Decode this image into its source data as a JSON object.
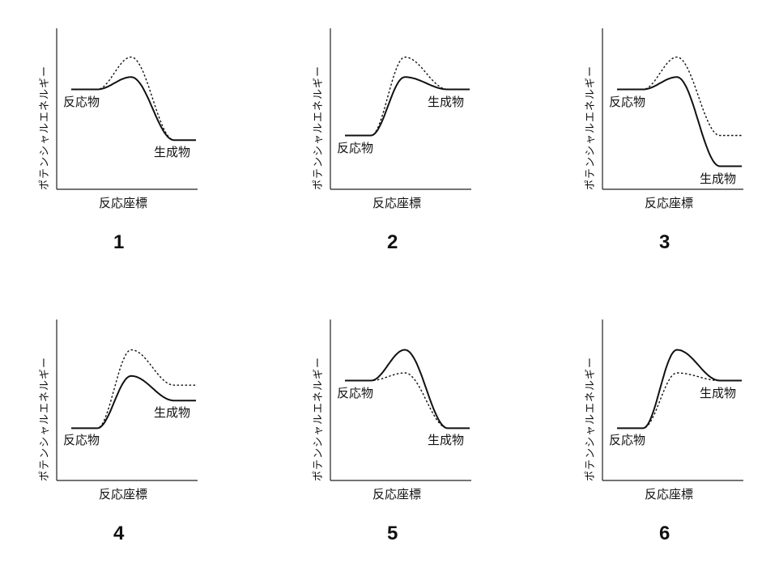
{
  "y_axis_label": "ポテンシャルエネルギー",
  "x_axis_label": "反応座標",
  "reactant_label": "反応物",
  "product_label": "生成物",
  "line_styles": {
    "solid": "solid",
    "dotted": "dotted"
  },
  "diagrams": [
    {
      "number": "1",
      "reactant_energy": 0.65,
      "product_energy": 0.32,
      "solid_peak": 0.73,
      "dotted_peak": 0.86,
      "dotted_product_energy": 0.32
    },
    {
      "number": "2",
      "reactant_energy": 0.35,
      "product_energy": 0.65,
      "solid_peak": 0.73,
      "dotted_peak": 0.86,
      "dotted_product_energy": 0.65
    },
    {
      "number": "3",
      "reactant_energy": 0.65,
      "product_energy": 0.15,
      "solid_peak": 0.73,
      "dotted_peak": 0.86,
      "dotted_product_energy": 0.35
    },
    {
      "number": "4",
      "reactant_energy": 0.34,
      "product_energy": 0.52,
      "solid_peak": 0.68,
      "dotted_peak": 0.85,
      "dotted_product_energy": 0.62
    },
    {
      "number": "5",
      "reactant_energy": 0.65,
      "product_energy": 0.34,
      "solid_peak": 0.85,
      "dotted_peak": 0.7,
      "dotted_product_energy": 0.34
    },
    {
      "number": "6",
      "reactant_energy": 0.34,
      "product_energy": 0.65,
      "solid_peak": 0.85,
      "dotted_peak": 0.7,
      "dotted_product_energy": 0.65
    }
  ]
}
